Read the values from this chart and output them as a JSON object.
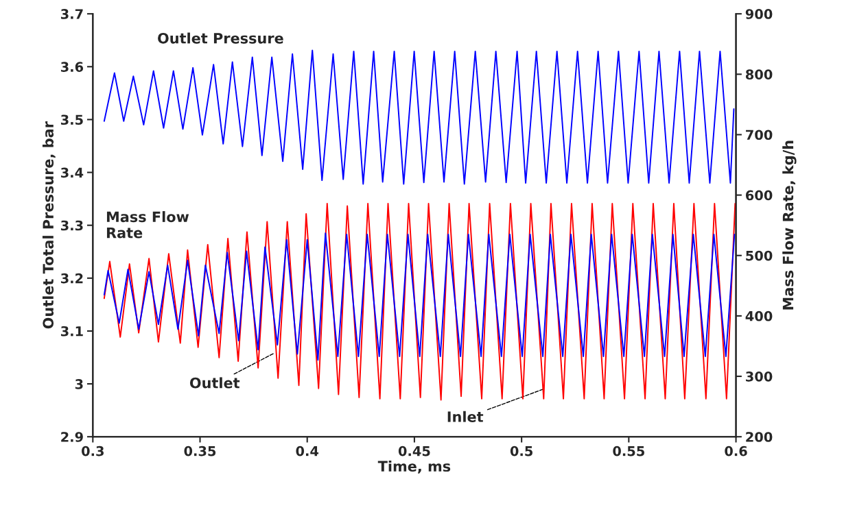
{
  "chart_data": {
    "type": "line",
    "xlabel": "Time, ms",
    "ylabel": "Outlet Total Pressure, bar",
    "y2label": "Mass Flow Rate, kg/h",
    "xlim": [
      0.3,
      0.6
    ],
    "xticks": [
      0.3,
      0.35,
      0.4,
      0.45,
      0.5,
      0.55,
      0.6
    ],
    "ylim": [
      2.9,
      3.7
    ],
    "yticks": [
      2.9,
      3,
      3.1,
      3.2,
      3.3,
      3.4,
      3.5,
      3.6,
      3.7
    ],
    "y2lim": [
      200,
      900
    ],
    "y2ticks": [
      200,
      300,
      400,
      500,
      600,
      700,
      800,
      900
    ],
    "grid": false,
    "legend": false,
    "marker": "none",
    "line_style": "solid",
    "annotations": [
      "Mass Flow Rate"
    ],
    "series": [
      {
        "name": "Outlet Pressure",
        "color": "#0000ff",
        "axis": "y",
        "x": [
          0.3053,
          0.3101,
          0.3144,
          0.3189,
          0.3237,
          0.3283,
          0.333,
          0.3376,
          0.342,
          0.3467,
          0.3511,
          0.3563,
          0.3608,
          0.3651,
          0.3698,
          0.3744,
          0.3789,
          0.3835,
          0.3886,
          0.3931,
          0.3979,
          0.4024,
          0.4069,
          0.4121,
          0.4168,
          0.4217,
          0.4261,
          0.431,
          0.4352,
          0.4406,
          0.445,
          0.4499,
          0.4544,
          0.4592,
          0.4638,
          0.4688,
          0.4733,
          0.4784,
          0.4832,
          0.488,
          0.4928,
          0.4979,
          0.5019,
          0.5069,
          0.5115,
          0.5165,
          0.5211,
          0.5261,
          0.5307,
          0.5357,
          0.5401,
          0.5452,
          0.5497,
          0.5548,
          0.5593,
          0.5641,
          0.5688,
          0.5737,
          0.5782,
          0.583,
          0.5878,
          0.5926,
          0.5974,
          0.599
        ],
        "values": [
          3.497,
          3.588,
          3.497,
          3.582,
          3.49,
          3.592,
          3.484,
          3.592,
          3.482,
          3.598,
          3.471,
          3.604,
          3.454,
          3.609,
          3.449,
          3.618,
          3.432,
          3.618,
          3.421,
          3.624,
          3.406,
          3.631,
          3.385,
          3.624,
          3.387,
          3.629,
          3.378,
          3.629,
          3.382,
          3.629,
          3.378,
          3.629,
          3.381,
          3.629,
          3.382,
          3.629,
          3.378,
          3.629,
          3.382,
          3.629,
          3.381,
          3.629,
          3.38,
          3.629,
          3.38,
          3.629,
          3.38,
          3.629,
          3.38,
          3.629,
          3.38,
          3.629,
          3.38,
          3.629,
          3.38,
          3.629,
          3.38,
          3.629,
          3.38,
          3.629,
          3.38,
          3.629,
          3.38,
          3.52
        ]
      },
      {
        "name": "Inlet",
        "color": "#ff0000",
        "axis": "y2",
        "x": [
          0.3053,
          0.3079,
          0.3128,
          0.3171,
          0.3214,
          0.3262,
          0.3306,
          0.3354,
          0.3408,
          0.3442,
          0.3491,
          0.3536,
          0.3589,
          0.363,
          0.3678,
          0.3719,
          0.3771,
          0.3813,
          0.3864,
          0.3907,
          0.3961,
          0.3995,
          0.4053,
          0.4093,
          0.4146,
          0.4187,
          0.4242,
          0.4283,
          0.4339,
          0.4377,
          0.4434,
          0.4473,
          0.4528,
          0.4566,
          0.4624,
          0.4662,
          0.4718,
          0.4755,
          0.4814,
          0.4851,
          0.4909,
          0.4948,
          0.5006,
          0.5043,
          0.5103,
          0.5137,
          0.5195,
          0.5233,
          0.5292,
          0.5329,
          0.5385,
          0.5423,
          0.548,
          0.5519,
          0.5576,
          0.5614,
          0.567,
          0.571,
          0.5761,
          0.5804,
          0.586,
          0.59,
          0.5956,
          0.5996
        ],
        "values": [
          429,
          490,
          365,
          486,
          372,
          495,
          357,
          503,
          355,
          509,
          348,
          518,
          331,
          528,
          325,
          539,
          314,
          556,
          297,
          556,
          285,
          569,
          280,
          586,
          270,
          582,
          265,
          586,
          263,
          586,
          263,
          586,
          265,
          586,
          261,
          586,
          267,
          586,
          263,
          586,
          263,
          586,
          263,
          586,
          263,
          586,
          263,
          586,
          263,
          586,
          263,
          586,
          263,
          586,
          263,
          586,
          263,
          586,
          263,
          586,
          263,
          586,
          263,
          586
        ]
      },
      {
        "name": "Outlet",
        "color": "#0000ff",
        "axis": "y2",
        "x": [
          0.3053,
          0.3071,
          0.3123,
          0.3164,
          0.3214,
          0.3262,
          0.3306,
          0.3349,
          0.3397,
          0.3442,
          0.3493,
          0.3525,
          0.3589,
          0.3627,
          0.368,
          0.3717,
          0.3771,
          0.3803,
          0.3861,
          0.3904,
          0.3954,
          0.4,
          0.405,
          0.4085,
          0.4143,
          0.4184,
          0.4239,
          0.428,
          0.4336,
          0.4374,
          0.4431,
          0.447,
          0.4525,
          0.4562,
          0.4621,
          0.4658,
          0.4715,
          0.4752,
          0.4811,
          0.4847,
          0.4906,
          0.4945,
          0.5003,
          0.504,
          0.5099,
          0.5134,
          0.5192,
          0.523,
          0.5288,
          0.5325,
          0.5382,
          0.542,
          0.5477,
          0.5516,
          0.5573,
          0.561,
          0.5667,
          0.5706,
          0.5758,
          0.5801,
          0.5857,
          0.5897,
          0.5953,
          0.5993
        ],
        "values": [
          435,
          475,
          388,
          477,
          378,
          473,
          386,
          484,
          378,
          492,
          367,
          484,
          371,
          505,
          359,
          507,
          344,
          514,
          352,
          526,
          337,
          526,
          327,
          537,
          333,
          535,
          333,
          535,
          333,
          535,
          333,
          535,
          333,
          535,
          333,
          535,
          333,
          535,
          333,
          535,
          333,
          535,
          333,
          535,
          333,
          535,
          333,
          535,
          333,
          535,
          333,
          535,
          333,
          535,
          333,
          535,
          333,
          535,
          333,
          535,
          333,
          535,
          333,
          535
        ]
      }
    ]
  }
}
